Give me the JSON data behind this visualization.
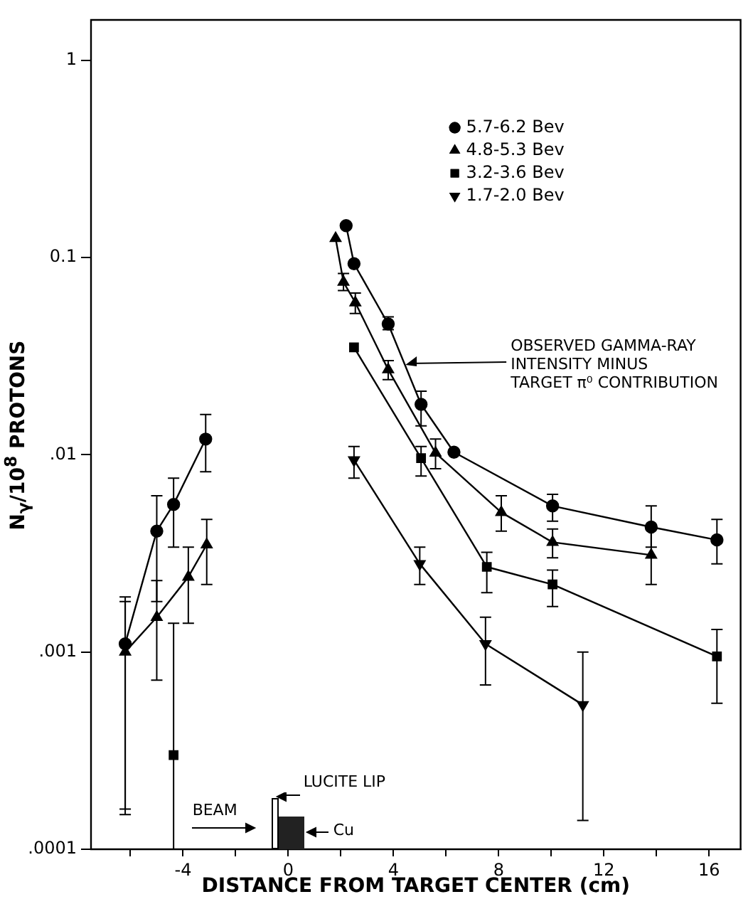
{
  "chart_data": {
    "type": "line",
    "xlabel": "DISTANCE FROM TARGET CENTER (cm)",
    "ylabel": "N$_{γ}$/10$^{8}$ PROTONS",
    "xlim": [
      -7.5,
      17.2
    ],
    "ylim": [
      0.0001,
      1.6
    ],
    "log": "y",
    "grid": false,
    "legend": "top right",
    "line_style": "solid",
    "xticks": [
      {
        "value": -6,
        "label": null
      },
      -4,
      {
        "value": -2,
        "label": null
      },
      0,
      {
        "value": 2,
        "label": null
      },
      4,
      {
        "value": 6,
        "label": null
      },
      8,
      {
        "value": 10,
        "label": null
      },
      12,
      {
        "value": 14,
        "label": null
      },
      16
    ],
    "yticks": [
      {
        "value": 0.0001,
        "label": ".0001"
      },
      {
        "value": 0.001,
        "label": ".001"
      },
      {
        "value": 0.01,
        "label": ".01"
      },
      {
        "value": 0.1,
        "label": "0.1"
      },
      1
    ],
    "series": [
      {
        "name": "5.7-6.2 Bev",
        "color": "#000000",
        "marker": "circle",
        "x": [
          2.2,
          2.5,
          3.8,
          5.05,
          6.3,
          10.05,
          13.8,
          16.3
        ],
        "values": [
          0.145,
          0.093,
          0.046,
          0.018,
          0.0103,
          0.0055,
          0.0043,
          0.0037
        ],
        "errors": [
          null,
          null,
          [
            0.043,
            0.05
          ],
          [
            0.014,
            0.021
          ],
          null,
          [
            0.0046,
            0.0063
          ],
          [
            0.0034,
            0.0055
          ],
          [
            0.0028,
            0.0047
          ]
        ]
      },
      {
        "name": "4.8-5.3 Bev",
        "color": "#000000",
        "marker": "triangle",
        "x": [
          1.8,
          2.1,
          2.55,
          3.8,
          5.6,
          8.1,
          10.05,
          13.8
        ],
        "values": [
          0.125,
          0.075,
          0.059,
          0.027,
          0.0102,
          0.0051,
          0.0036,
          0.0031
        ],
        "errors": [
          null,
          [
            0.068,
            0.083
          ],
          [
            0.052,
            0.066
          ],
          [
            0.024,
            0.03
          ],
          [
            0.0085,
            0.012
          ],
          [
            0.0041,
            0.0062
          ],
          [
            0.003,
            0.0042
          ],
          [
            0.0022,
            0.0043
          ]
        ]
      },
      {
        "name": "3.2-3.6 Bev",
        "color": "#000000",
        "marker": "square",
        "x": [
          2.5,
          5.05,
          7.55,
          10.05,
          16.3
        ],
        "values": [
          0.035,
          0.0096,
          0.0027,
          0.0022,
          0.00095
        ],
        "errors": [
          null,
          [
            0.0078,
            0.011
          ],
          [
            0.002,
            0.0032
          ],
          [
            0.0017,
            0.0026
          ],
          [
            0.00055,
            0.0013
          ]
        ]
      },
      {
        "name": "1.7-2.0 Bev",
        "color": "#000000",
        "marker": "triangle_down",
        "x": [
          2.5,
          5.0,
          7.5,
          11.2
        ],
        "values": [
          0.0094,
          0.0028,
          0.0011,
          0.00054
        ],
        "errors": [
          [
            0.0076,
            0.011
          ],
          [
            0.0022,
            0.0034
          ],
          [
            0.00068,
            0.0015
          ],
          [
            0.00014,
            0.001
          ]
        ]
      },
      {
        "color": "#000000",
        "marker": "circle",
        "x": [
          -6.2,
          -5.0,
          -4.36,
          -3.14
        ],
        "values": [
          0.0011,
          0.0041,
          0.0056,
          0.012
        ],
        "errors": [
          [
            0.00016,
            0.0019
          ],
          [
            0.0018,
            0.0062
          ],
          [
            0.0034,
            0.0076
          ],
          [
            0.0082,
            0.016
          ]
        ]
      },
      {
        "color": "#000000",
        "marker": "triangle",
        "x": [
          -6.2,
          -5.0,
          -3.8,
          -3.1
        ],
        "values": [
          0.001,
          0.0015,
          0.0024,
          0.0035
        ],
        "errors": [
          [
            0.00015,
            0.0018
          ],
          [
            0.00072,
            0.0023
          ],
          [
            0.0014,
            0.0034
          ],
          [
            0.0022,
            0.0047
          ]
        ]
      },
      {
        "color": "#000000",
        "marker": "square",
        "x": [
          -4.36
        ],
        "values": [
          0.0003
        ],
        "errors": [
          [
            0.0001,
            0.0014
          ]
        ]
      }
    ],
    "annotations": [
      {
        "text": "OBSERVED GAMMA-RAY INTENSITY MINUS TARGET π⁰ CONTRIBUTION",
        "x": 4.4,
        "y": 0.029
      },
      "BEAM",
      "LUCITE LIP",
      "Cu"
    ]
  }
}
